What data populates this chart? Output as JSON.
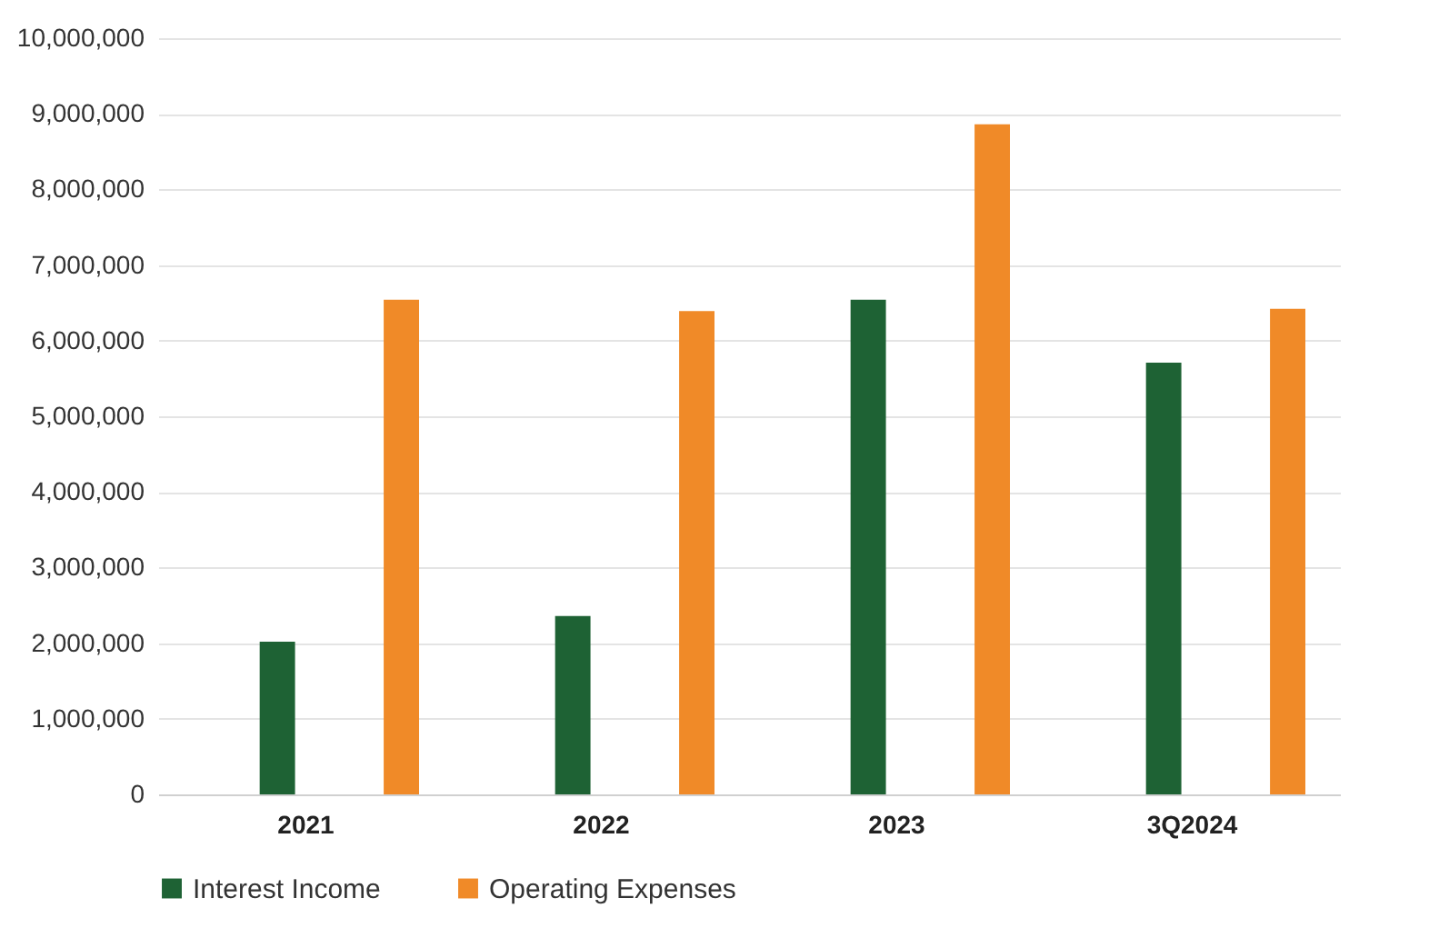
{
  "chart_data": {
    "type": "bar",
    "categories": [
      "2021",
      "2022",
      "2023",
      "3Q2024"
    ],
    "series": [
      {
        "name": "Interest Income",
        "color": "#1e6234",
        "values": [
          2020000,
          2360000,
          6540000,
          5710000
        ]
      },
      {
        "name": "Operating Expenses",
        "color": "#f08a28",
        "values": [
          6540000,
          6390000,
          8860000,
          6420000
        ]
      }
    ],
    "ylim": [
      0,
      10000000
    ],
    "yticks": [
      {
        "value": 0,
        "label": "0"
      },
      {
        "value": 1000000,
        "label": "1,000,000"
      },
      {
        "value": 2000000,
        "label": "2,000,000"
      },
      {
        "value": 3000000,
        "label": "3,000,000"
      },
      {
        "value": 4000000,
        "label": "4,000,000"
      },
      {
        "value": 5000000,
        "label": "5,000,000"
      },
      {
        "value": 6000000,
        "label": "6,000,000"
      },
      {
        "value": 7000000,
        "label": "7,000,000"
      },
      {
        "value": 8000000,
        "label": "8,000,000"
      },
      {
        "value": 9000000,
        "label": "9,000,000"
      },
      {
        "value": 10000000,
        "label": "10,000,000"
      }
    ],
    "grid": "y",
    "legend": "bottom"
  }
}
